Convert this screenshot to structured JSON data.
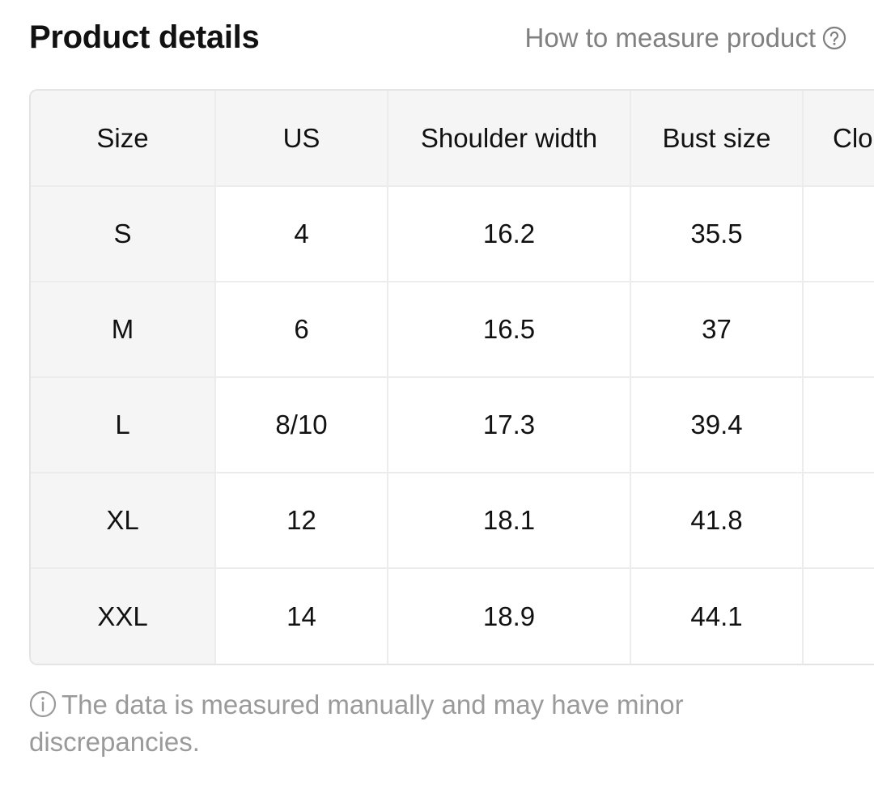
{
  "header": {
    "title": "Product details",
    "measure_link": "How to measure product"
  },
  "table": {
    "columns": [
      "Size",
      "US",
      "Shoulder width",
      "Bust size",
      "Clo"
    ],
    "rows": [
      {
        "size": "S",
        "us": "4",
        "shoulder": "16.2",
        "bust": "35.5",
        "clothing": ""
      },
      {
        "size": "M",
        "us": "6",
        "shoulder": "16.5",
        "bust": "37",
        "clothing": ""
      },
      {
        "size": "L",
        "us": "8/10",
        "shoulder": "17.3",
        "bust": "39.4",
        "clothing": ""
      },
      {
        "size": "XL",
        "us": "12",
        "shoulder": "18.1",
        "bust": "41.8",
        "clothing": ""
      },
      {
        "size": "XXL",
        "us": "14",
        "shoulder": "18.9",
        "bust": "44.1",
        "clothing": ""
      }
    ]
  },
  "note": {
    "text": "The data is measured manually and may have minor discrepancies."
  },
  "icons": {
    "help": "question-circle-icon",
    "info": "info-circle-icon"
  },
  "colors": {
    "header_bg": "#f5f5f5",
    "border": "#ececec",
    "muted_text": "#808080"
  }
}
